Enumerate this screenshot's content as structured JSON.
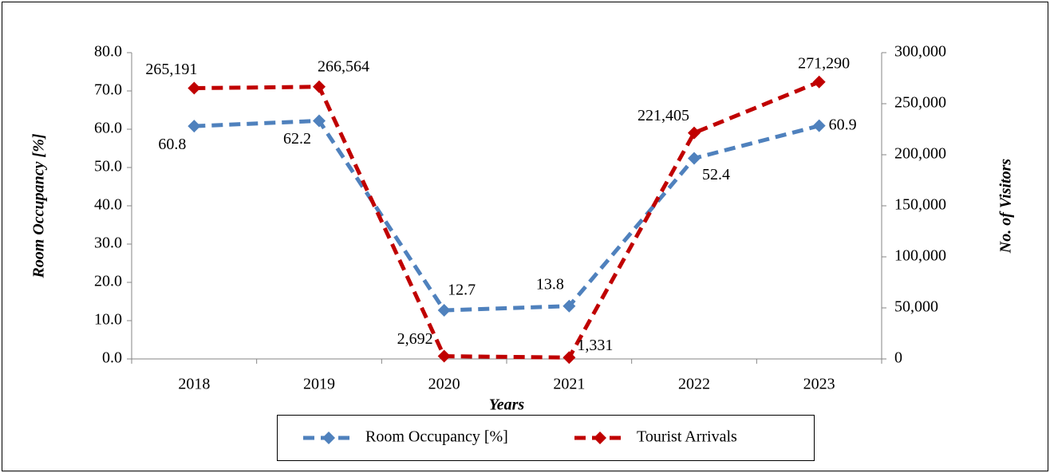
{
  "chart_data": {
    "type": "line",
    "x_label": "Years",
    "y_label": "Room Occupancy [%]",
    "y2_label": "No. of Visitors",
    "categories": [
      "2018",
      "2019",
      "2020",
      "2021",
      "2022",
      "2023"
    ],
    "series": [
      {
        "name": "Room Occupancy [%]",
        "color": "#4f81bd",
        "values": [
          60.8,
          62.2,
          12.7,
          13.8,
          52.4,
          60.9
        ]
      },
      {
        "name": "Tourist Arrivals",
        "color": "#c00000",
        "axis": "y2",
        "values": [
          265191,
          266564,
          2692,
          1331,
          221405,
          271290
        ],
        "value_labels": [
          "265,191",
          "266,564",
          "2,692",
          "1,331",
          "221,405",
          "271,290"
        ]
      }
    ],
    "ylim": [
      0,
      80
    ],
    "yticks": [
      {
        "value": 0,
        "label": "0.0"
      },
      {
        "value": 10,
        "label": "10.0"
      },
      {
        "value": 20,
        "label": "20.0"
      },
      {
        "value": 30,
        "label": "30.0"
      },
      {
        "value": 40,
        "label": "40.0"
      },
      {
        "value": 50,
        "label": "50.0"
      },
      {
        "value": 60,
        "label": "60.0"
      },
      {
        "value": 70,
        "label": "70.0"
      },
      {
        "value": 80,
        "label": "80.0"
      }
    ],
    "y2lim": [
      0,
      300000
    ],
    "y2ticks": [
      0,
      {
        "value": 50000,
        "label": "50,000"
      },
      {
        "value": 100000,
        "label": "100,000"
      },
      {
        "value": 150000,
        "label": "150,000"
      },
      {
        "value": 200000,
        "label": "200,000"
      },
      {
        "value": 250000,
        "label": "250,000"
      },
      {
        "value": 300000,
        "label": "300,000"
      }
    ],
    "legend": "bottom"
  }
}
